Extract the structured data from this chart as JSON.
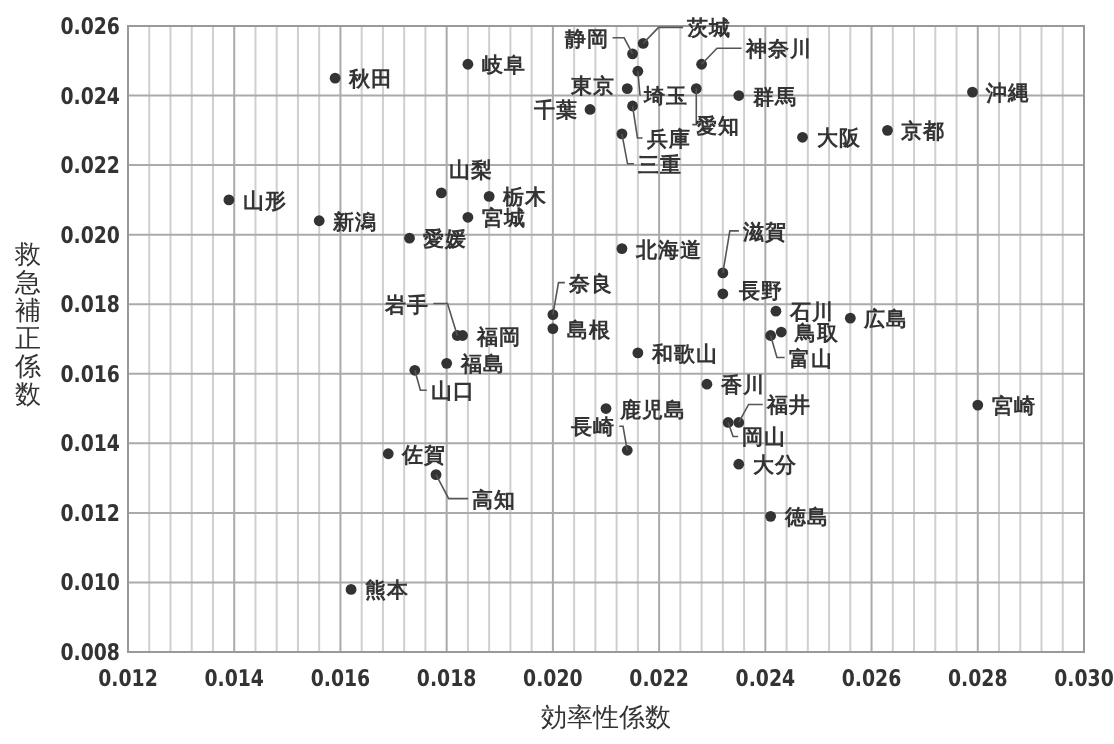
{
  "chart_data": {
    "type": "scatter",
    "xlabel": "効率性係数",
    "ylabel": "救急補正係数",
    "grid": true,
    "marker": "circle",
    "xlim": [
      0.012,
      0.03
    ],
    "ylim": [
      0.008,
      0.026
    ],
    "xticks": [
      0.012,
      {
        "value": 0.0124,
        "label": null
      },
      {
        "value": 0.0128,
        "label": null
      },
      {
        "value": 0.0132,
        "label": null
      },
      {
        "value": 0.0136,
        "label": null
      },
      0.014,
      {
        "value": 0.0144,
        "label": null
      },
      {
        "value": 0.0148,
        "label": null
      },
      {
        "value": 0.0152,
        "label": null
      },
      {
        "value": 0.0156,
        "label": null
      },
      0.016,
      {
        "value": 0.0164,
        "label": null
      },
      {
        "value": 0.0168,
        "label": null
      },
      {
        "value": 0.0172,
        "label": null
      },
      {
        "value": 0.0176,
        "label": null
      },
      0.018,
      {
        "value": 0.0184,
        "label": null
      },
      {
        "value": 0.0188,
        "label": null
      },
      {
        "value": 0.0192,
        "label": null
      },
      {
        "value": 0.0196,
        "label": null
      },
      {
        "value": 0.02,
        "label": "0.020"
      },
      {
        "value": 0.0204,
        "label": null
      },
      {
        "value": 0.0208,
        "label": null
      },
      {
        "value": 0.0212,
        "label": null
      },
      {
        "value": 0.0216,
        "label": null
      },
      0.022,
      {
        "value": 0.0224,
        "label": null
      },
      {
        "value": 0.0228,
        "label": null
      },
      {
        "value": 0.0232,
        "label": null
      },
      {
        "value": 0.0236,
        "label": null
      },
      0.024,
      {
        "value": 0.0244,
        "label": null
      },
      {
        "value": 0.0248,
        "label": null
      },
      {
        "value": 0.0252,
        "label": null
      },
      {
        "value": 0.0256,
        "label": null
      },
      0.026,
      {
        "value": 0.0264,
        "label": null
      },
      {
        "value": 0.0268,
        "label": null
      },
      {
        "value": 0.0272,
        "label": null
      },
      {
        "value": 0.0276,
        "label": null
      },
      0.028,
      {
        "value": 0.0284,
        "label": null
      },
      {
        "value": 0.0288,
        "label": null
      },
      {
        "value": 0.0292,
        "label": null
      },
      {
        "value": 0.0296,
        "label": null
      },
      {
        "value": 0.03,
        "label": "0.030"
      }
    ],
    "yticks": [
      0.008,
      {
        "value": 0.01,
        "label": "0.010"
      },
      0.012,
      0.014,
      0.016,
      0.018,
      {
        "value": 0.02,
        "label": "0.020"
      },
      0.022,
      0.024,
      0.026
    ],
    "series": [
      {
        "color": "#333333",
        "x": [
          0.0159,
          0.0184,
          0.0139,
          0.0156,
          0.0179,
          0.0188,
          0.0184,
          0.0173,
          0.0207,
          0.0215,
          0.0217,
          0.0214,
          0.0216,
          0.0215,
          0.0213,
          0.0228,
          0.0227,
          0.0235,
          0.0247,
          0.0263,
          0.0279,
          0.0213,
          0.0232,
          0.0232,
          0.02,
          0.02,
          0.0182,
          0.0183,
          0.018,
          0.0174,
          0.0169,
          0.0178,
          0.0162,
          0.0242,
          0.0256,
          0.0243,
          0.0241,
          0.0216,
          0.0229,
          0.021,
          0.028,
          0.0235,
          0.0233,
          0.0214,
          0.0235,
          0.0241
        ],
        "values": [
          0.0245,
          0.0249,
          0.021,
          0.0204,
          0.0212,
          0.0211,
          0.0205,
          0.0199,
          0.0236,
          0.0252,
          0.0255,
          0.0242,
          0.0247,
          0.0237,
          0.0229,
          0.0249,
          0.0242,
          0.024,
          0.0228,
          0.023,
          0.0241,
          0.0196,
          0.0189,
          0.0183,
          0.0177,
          0.0173,
          0.0171,
          0.0171,
          0.0163,
          0.0161,
          0.0137,
          0.0131,
          0.0098,
          0.0178,
          0.0176,
          0.0172,
          0.0171,
          0.0166,
          0.0157,
          0.015,
          0.0151,
          0.0146,
          0.0146,
          0.0138,
          0.0134,
          0.0119
        ]
      }
    ],
    "annotations": [
      {
        "text": "秋田",
        "x": 0.0159,
        "y": 0.0245
      },
      {
        "text": "岐阜",
        "x": 0.0184,
        "y": 0.0249
      },
      {
        "text": "山形",
        "x": 0.0139,
        "y": 0.021
      },
      {
        "text": "新潟",
        "x": 0.0156,
        "y": 0.0204
      },
      {
        "text": "山梨",
        "x": 0.0179,
        "y": 0.0212
      },
      {
        "text": "栃木",
        "x": 0.0188,
        "y": 0.0211
      },
      {
        "text": "宮城",
        "x": 0.0184,
        "y": 0.0205
      },
      {
        "text": "愛媛",
        "x": 0.0173,
        "y": 0.0199
      },
      {
        "text": "千葉",
        "x": 0.0207,
        "y": 0.0236
      },
      {
        "text": "静岡",
        "x": 0.0215,
        "y": 0.0252
      },
      {
        "text": "茨城",
        "x": 0.0217,
        "y": 0.0255
      },
      {
        "text": "東京",
        "x": 0.0214,
        "y": 0.0242
      },
      {
        "text": "埼玉",
        "x": 0.0216,
        "y": 0.0247
      },
      {
        "text": "兵庫",
        "x": 0.0215,
        "y": 0.0237
      },
      {
        "text": "三重",
        "x": 0.0213,
        "y": 0.0229
      },
      {
        "text": "神奈川",
        "x": 0.0228,
        "y": 0.0249
      },
      {
        "text": "愛知",
        "x": 0.0227,
        "y": 0.0242
      },
      {
        "text": "群馬",
        "x": 0.0235,
        "y": 0.024
      },
      {
        "text": "大阪",
        "x": 0.0247,
        "y": 0.0228
      },
      {
        "text": "京都",
        "x": 0.0263,
        "y": 0.023
      },
      {
        "text": "沖縄",
        "x": 0.0279,
        "y": 0.0241
      },
      {
        "text": "北海道",
        "x": 0.0213,
        "y": 0.0196
      },
      {
        "text": "滋賀",
        "x": 0.0232,
        "y": 0.0189
      },
      {
        "text": "長野",
        "x": 0.0232,
        "y": 0.0183
      },
      {
        "text": "奈良",
        "x": 0.02,
        "y": 0.0177
      },
      {
        "text": "島根",
        "x": 0.02,
        "y": 0.0173
      },
      {
        "text": "岩手",
        "x": 0.0182,
        "y": 0.0171
      },
      {
        "text": "福岡",
        "x": 0.0183,
        "y": 0.0171
      },
      {
        "text": "福島",
        "x": 0.018,
        "y": 0.0163
      },
      {
        "text": "山口",
        "x": 0.0174,
        "y": 0.0161
      },
      {
        "text": "佐賀",
        "x": 0.0169,
        "y": 0.0137
      },
      {
        "text": "高知",
        "x": 0.0178,
        "y": 0.0131
      },
      {
        "text": "熊本",
        "x": 0.0162,
        "y": 0.0098
      },
      {
        "text": "石川",
        "x": 0.0242,
        "y": 0.0178
      },
      {
        "text": "広島",
        "x": 0.0256,
        "y": 0.0176
      },
      {
        "text": "鳥取",
        "x": 0.0243,
        "y": 0.0172
      },
      {
        "text": "富山",
        "x": 0.0241,
        "y": 0.0171
      },
      {
        "text": "和歌山",
        "x": 0.0216,
        "y": 0.0166
      },
      {
        "text": "香川",
        "x": 0.0229,
        "y": 0.0157
      },
      {
        "text": "鹿児島",
        "x": 0.021,
        "y": 0.015
      },
      {
        "text": "宮崎",
        "x": 0.028,
        "y": 0.0151
      },
      {
        "text": "福井",
        "x": 0.0235,
        "y": 0.0146
      },
      {
        "text": "岡山",
        "x": 0.0233,
        "y": 0.0146
      },
      {
        "text": "長崎",
        "x": 0.0214,
        "y": 0.0138
      },
      {
        "text": "大分",
        "x": 0.0235,
        "y": 0.0134
      },
      {
        "text": "徳島",
        "x": 0.0241,
        "y": 0.0119
      }
    ]
  }
}
